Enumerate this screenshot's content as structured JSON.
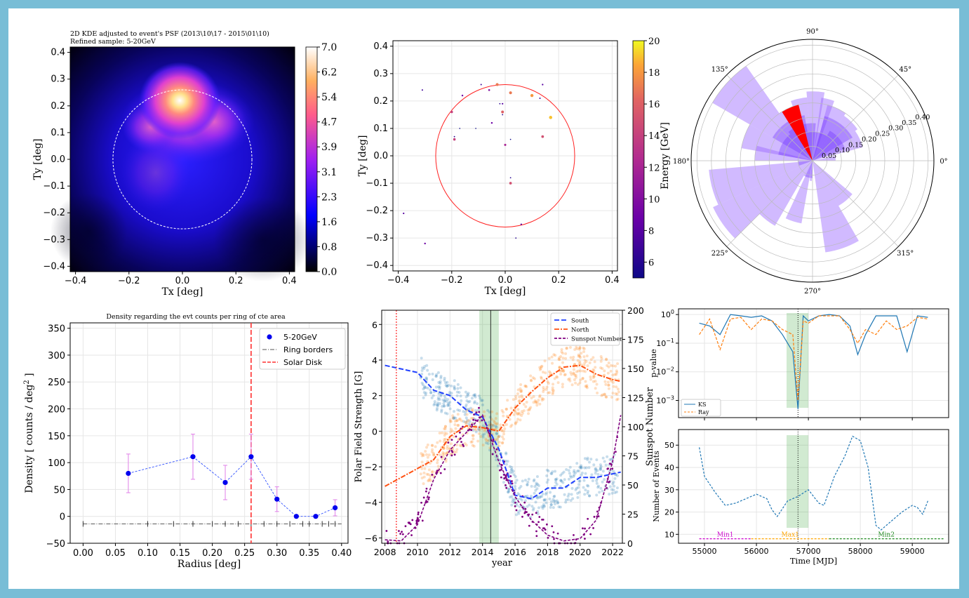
{
  "colors": {
    "frame": "#78bdd6",
    "blue": "#1f77b4",
    "orange": "#ff7f0e",
    "purple": "#8b008b",
    "red": "#ff0000",
    "green": "#2ca02c",
    "violet": "#9966ff"
  },
  "panel1": {
    "title": "2D KDE adjusted to event's PSF (2013\\10\\17 - 2015\\01\\10)",
    "subtitle": "Refined sample: 5-20GeV"
  },
  "panel2": {},
  "panel3": {},
  "panel4": {
    "title": "Density regarding the evt counts per ring of cte area"
  },
  "panel5": {},
  "panel6": {},
  "chart_data": [
    {
      "type": "heatmap",
      "title": "2D KDE adjusted to event's PSF (2013\\10\\17 - 2015\\01\\10)",
      "subtitle": "Refined sample: 5-20GeV",
      "xlabel": "Tx [deg]",
      "ylabel": "Ty [deg]",
      "xlim": [
        -0.42,
        0.42
      ],
      "ylim": [
        -0.42,
        0.42
      ],
      "xticks": [
        "−0.4",
        "−0.2",
        "0.0",
        "0.2",
        "0.4"
      ],
      "yticks": [
        "0.4",
        "0.3",
        "0.2",
        "0.1",
        "0.0",
        "−0.1",
        "−0.2",
        "−0.3",
        "−0.4"
      ],
      "colorbar_ticks": [
        "7.0",
        "6.2",
        "5.4",
        "4.7",
        "3.9",
        "3.1",
        "2.3",
        "1.6",
        "0.8",
        "0.0"
      ],
      "colormap": "gnuplot2",
      "peak": {
        "x": -0.01,
        "y": 0.22
      },
      "solar_disk_radius": 0.26
    },
    {
      "type": "scatter",
      "xlabel": "Tx [deg]",
      "ylabel": "Ty [deg]",
      "xlim": [
        -0.42,
        0.42
      ],
      "ylim": [
        -0.42,
        0.42
      ],
      "xticks": [
        "−0.4",
        "−0.2",
        "0.0",
        "0.2",
        "0.4"
      ],
      "yticks": [
        "0.4",
        "0.3",
        "0.2",
        "0.1",
        "0.0",
        "−0.1",
        "−0.2",
        "−0.3",
        "−0.4"
      ],
      "colorbar_label": "Energy [GeV]",
      "colorbar_ticks": [
        "20",
        "18",
        "16",
        "14",
        "12",
        "10",
        "8",
        "6"
      ],
      "colormap": "plasma",
      "clim": [
        5,
        20
      ],
      "circle_radius": 0.26,
      "points": [
        {
          "x": -0.31,
          "y": 0.24,
          "e": 7
        },
        {
          "x": -0.2,
          "y": 0.16,
          "e": 14
        },
        {
          "x": -0.19,
          "y": 0.07,
          "e": 6
        },
        {
          "x": -0.19,
          "y": 0.06,
          "e": 14
        },
        {
          "x": -0.17,
          "y": 0.1,
          "e": 5
        },
        {
          "x": -0.16,
          "y": 0.22,
          "e": 9
        },
        {
          "x": -0.11,
          "y": 0.1,
          "e": 5
        },
        {
          "x": -0.09,
          "y": 0.26,
          "e": 7
        },
        {
          "x": -0.06,
          "y": 0.24,
          "e": 10
        },
        {
          "x": -0.05,
          "y": 0.12,
          "e": 9
        },
        {
          "x": -0.03,
          "y": 0.26,
          "e": 17
        },
        {
          "x": -0.02,
          "y": 0.19,
          "e": 6
        },
        {
          "x": -0.01,
          "y": 0.19,
          "e": 8
        },
        {
          "x": -0.01,
          "y": 0.16,
          "e": 16
        },
        {
          "x": -0.01,
          "y": 0.15,
          "e": 6
        },
        {
          "x": 0.0,
          "y": 0.04,
          "e": 12
        },
        {
          "x": 0.02,
          "y": 0.23,
          "e": 17
        },
        {
          "x": 0.02,
          "y": 0.06,
          "e": 5
        },
        {
          "x": 0.02,
          "y": -0.08,
          "e": 6
        },
        {
          "x": 0.02,
          "y": -0.1,
          "e": 15
        },
        {
          "x": 0.1,
          "y": 0.22,
          "e": 18
        },
        {
          "x": 0.13,
          "y": 0.21,
          "e": 7
        },
        {
          "x": 0.14,
          "y": 0.26,
          "e": 8
        },
        {
          "x": 0.14,
          "y": 0.07,
          "e": 15
        },
        {
          "x": 0.17,
          "y": 0.14,
          "e": 19
        },
        {
          "x": 0.06,
          "y": -0.25,
          "e": 8
        },
        {
          "x": 0.04,
          "y": -0.3,
          "e": 6
        },
        {
          "x": -0.38,
          "y": -0.21,
          "e": 8
        },
        {
          "x": -0.3,
          "y": -0.32,
          "e": 9
        }
      ]
    },
    {
      "type": "polar_histogram",
      "angle_labels": [
        "90°",
        "45°",
        "0°",
        "315°",
        "270°",
        "225°",
        "180°",
        "135°"
      ],
      "radial_ticks": [
        "0.05",
        "0.10",
        "0.15",
        "0.20",
        "0.25",
        "0.30",
        "0.35",
        "0.40"
      ],
      "rmax": 0.42,
      "bars": [
        {
          "theta": [
            15,
            35
          ],
          "r": 0.18
        },
        {
          "theta": [
            35,
            55
          ],
          "r": 0.19
        },
        {
          "theta": [
            55,
            75
          ],
          "r": 0.2
        },
        {
          "theta": [
            70,
            82
          ],
          "r": 0.22
        },
        {
          "theta": [
            80,
            95
          ],
          "r": 0.24
        },
        {
          "theta": [
            95,
            110
          ],
          "r": 0.22
        },
        {
          "theta": [
            110,
            125
          ],
          "r": 0.2
        },
        {
          "theta": [
            125,
            150
          ],
          "r": 0.4
        },
        {
          "theta": [
            150,
            170
          ],
          "r": 0.25
        },
        {
          "theta": [
            165,
            180
          ],
          "r": 0.2
        },
        {
          "theta": [
            185,
            205
          ],
          "r": 0.36
        },
        {
          "theta": [
            205,
            225
          ],
          "r": 0.38
        },
        {
          "theta": [
            225,
            240
          ],
          "r": 0.26
        },
        {
          "theta": [
            245,
            260
          ],
          "r": 0.22
        },
        {
          "theta": [
            262,
            268
          ],
          "r": 0.07
        },
        {
          "theta": [
            278,
            300
          ],
          "r": 0.32
        },
        {
          "theta": [
            300,
            320
          ],
          "r": 0.18
        },
        {
          "theta": [
            0,
            12
          ],
          "r": 0.08
        }
      ],
      "highlight": {
        "theta": [
          104,
          122
        ],
        "r": 0.2,
        "color": "#ff0000"
      }
    },
    {
      "type": "scatter",
      "title": "Density regarding the evt counts per ring of cte area",
      "xlabel": "Radius [deg]",
      "ylabel": "Density [ counts / deg$^2$ ]",
      "ylabel_main": "Density [ counts / deg",
      "ylabel_sup": "2",
      "ylabel_end": " ]",
      "xlim": [
        -0.02,
        0.41
      ],
      "ylim": [
        -50,
        360
      ],
      "xticks": [
        "0.00",
        "0.05",
        "0.10",
        "0.15",
        "0.20",
        "0.25",
        "0.30",
        "0.35",
        "0.40"
      ],
      "yticks": [
        "350",
        "300",
        "250",
        "200",
        "150",
        "100",
        "50",
        "0",
        "−50"
      ],
      "legend": [
        "5-20GeV",
        "Ring borders",
        "Solar Disk"
      ],
      "series": [
        {
          "name": "5-20GeV",
          "x": [
            0.07,
            0.17,
            0.22,
            0.26,
            0.3,
            0.33,
            0.36,
            0.39
          ],
          "y": [
            80,
            111,
            63,
            111,
            32,
            0,
            0,
            16
          ],
          "err": [
            36,
            42,
            32,
            42,
            23,
            0,
            0,
            15
          ]
        }
      ],
      "ring_borders": {
        "y": -14,
        "x": [
          0.0,
          0.1,
          0.14,
          0.17,
          0.2,
          0.22,
          0.24,
          0.26,
          0.28,
          0.3,
          0.32,
          0.34,
          0.35,
          0.37,
          0.38,
          0.39
        ]
      },
      "solar_disk": 0.26
    },
    {
      "type": "line",
      "xlabel": "year",
      "ylabel": "Polar Field Strength [G]",
      "ylabel_right": "Sunspot Number",
      "xlim": [
        2007.8,
        2022.6
      ],
      "ylim": [
        -6.3,
        6.8
      ],
      "ylim_right": [
        0,
        200
      ],
      "xticks": [
        "2008",
        "2010",
        "2012",
        "2014",
        "2016",
        "2018",
        "2020",
        "2022"
      ],
      "yticks": [
        "6",
        "4",
        "2",
        "0",
        "−2",
        "−4",
        "−6"
      ],
      "yticks_right": [
        "200",
        "175",
        "150",
        "125",
        "100",
        "75",
        "50",
        "25",
        "0"
      ],
      "legend": [
        "South",
        "North",
        "Sunspot Number"
      ],
      "series": [
        {
          "name": "South",
          "x": [
            2008,
            2009,
            2010,
            2011,
            2012,
            2013,
            2014,
            2015,
            2016,
            2017,
            2018,
            2019,
            2020,
            2021,
            2022,
            2022.5
          ],
          "y": [
            3.7,
            3.5,
            3.3,
            2.3,
            2.0,
            1.2,
            0.8,
            -1.0,
            -3.6,
            -3.8,
            -3.2,
            -3.2,
            -2.6,
            -2.6,
            -2.4,
            -2.3
          ]
        },
        {
          "name": "North",
          "x": [
            2008,
            2009,
            2010,
            2011,
            2012,
            2013,
            2014,
            2015,
            2016,
            2017,
            2018,
            2019,
            2020,
            2021,
            2022,
            2022.5
          ],
          "y": [
            -3.1,
            -2.6,
            -2.1,
            -1.6,
            -0.3,
            0.3,
            0.2,
            0.0,
            1.3,
            2.2,
            3.0,
            3.6,
            3.7,
            3.2,
            2.9,
            2.8
          ]
        },
        {
          "name": "Sunspot Number",
          "x": [
            2008,
            2009,
            2010,
            2011,
            2012,
            2013,
            2014,
            2015,
            2016,
            2017,
            2018,
            2019,
            2020,
            2021,
            2022,
            2022.5
          ],
          "y": [
            3,
            2,
            16,
            55,
            80,
            95,
            110,
            70,
            40,
            20,
            7,
            2,
            4,
            20,
            70,
            110
          ]
        }
      ],
      "shaded_band": [
        2013.8,
        2015.0
      ],
      "vlines": [
        2008.7,
        2014.5
      ]
    },
    {
      "type": "line",
      "xlabel": "",
      "ylabel": "p-value",
      "yscale": "log",
      "xlim": [
        54500,
        59700
      ],
      "ylim_exp": [
        -3.6,
        0.2
      ],
      "yticks": [
        "10^0",
        "10^-1",
        "10^-2",
        "10^-3"
      ],
      "legend": [
        "KS",
        "Ray"
      ],
      "series": [
        {
          "name": "KS",
          "x": [
            54900,
            55100,
            55300,
            55500,
            55700,
            55900,
            56100,
            56300,
            56500,
            56700,
            56800,
            56900,
            57000,
            57200,
            57400,
            57600,
            57800,
            57950,
            58100,
            58300,
            58500,
            58700,
            58900,
            59100,
            59300
          ],
          "y": [
            0.5,
            0.4,
            0.2,
            1.0,
            0.9,
            0.8,
            0.9,
            0.6,
            0.2,
            0.05,
            0.0005,
            0.9,
            0.6,
            0.9,
            1.0,
            0.9,
            0.4,
            0.04,
            0.2,
            0.9,
            0.9,
            0.9,
            0.05,
            0.9,
            0.8
          ]
        },
        {
          "name": "Ray",
          "x": [
            54900,
            55100,
            55300,
            55500,
            55700,
            55900,
            56100,
            56300,
            56500,
            56700,
            56800,
            56900,
            57000,
            57200,
            57400,
            57600,
            57800,
            57950,
            58100,
            58300,
            58500,
            58700,
            58900,
            59100,
            59300
          ],
          "y": [
            0.2,
            0.7,
            0.06,
            0.7,
            0.8,
            0.3,
            0.7,
            0.6,
            0.3,
            0.2,
            0.001,
            0.6,
            0.5,
            0.9,
            0.9,
            0.9,
            0.3,
            0.1,
            0.3,
            0.2,
            0.6,
            0.3,
            0.4,
            0.8,
            0.7
          ]
        }
      ],
      "shaded_band": [
        56580,
        57000
      ],
      "vline": 56800
    },
    {
      "type": "line",
      "xlabel": "Time [MJD]",
      "ylabel": "Number of Events",
      "xlim": [
        54500,
        59700
      ],
      "ylim": [
        6,
        57
      ],
      "xticks": [
        "55000",
        "56000",
        "57000",
        "58000",
        "59000"
      ],
      "yticks": [
        "50",
        "40",
        "30",
        "20",
        "10"
      ],
      "series": [
        {
          "name": "",
          "x": [
            54900,
            55000,
            55200,
            55400,
            55600,
            55800,
            56000,
            56200,
            56300,
            56400,
            56600,
            56800,
            57000,
            57200,
            57300,
            57500,
            57700,
            57850,
            58000,
            58150,
            58300,
            58400,
            58600,
            58800,
            59000,
            59100,
            59200,
            59300
          ],
          "y": [
            49,
            36,
            29,
            23,
            24,
            26,
            28,
            26,
            21,
            18,
            25,
            27,
            30,
            24,
            23,
            36,
            45,
            54,
            52,
            40,
            14,
            12,
            16,
            20,
            23,
            22,
            19,
            25
          ]
        }
      ],
      "shaded_band": [
        56580,
        57000
      ],
      "vline": 56800,
      "periods": [
        {
          "label": "Min1",
          "x": [
            54900,
            55900
          ],
          "color": "#cc00cc"
        },
        {
          "label": "Max1",
          "x": [
            55900,
            57400
          ],
          "color": "#ffa500"
        },
        {
          "label": "Min2",
          "x": [
            57400,
            59600
          ],
          "color": "#228b22"
        }
      ]
    }
  ]
}
